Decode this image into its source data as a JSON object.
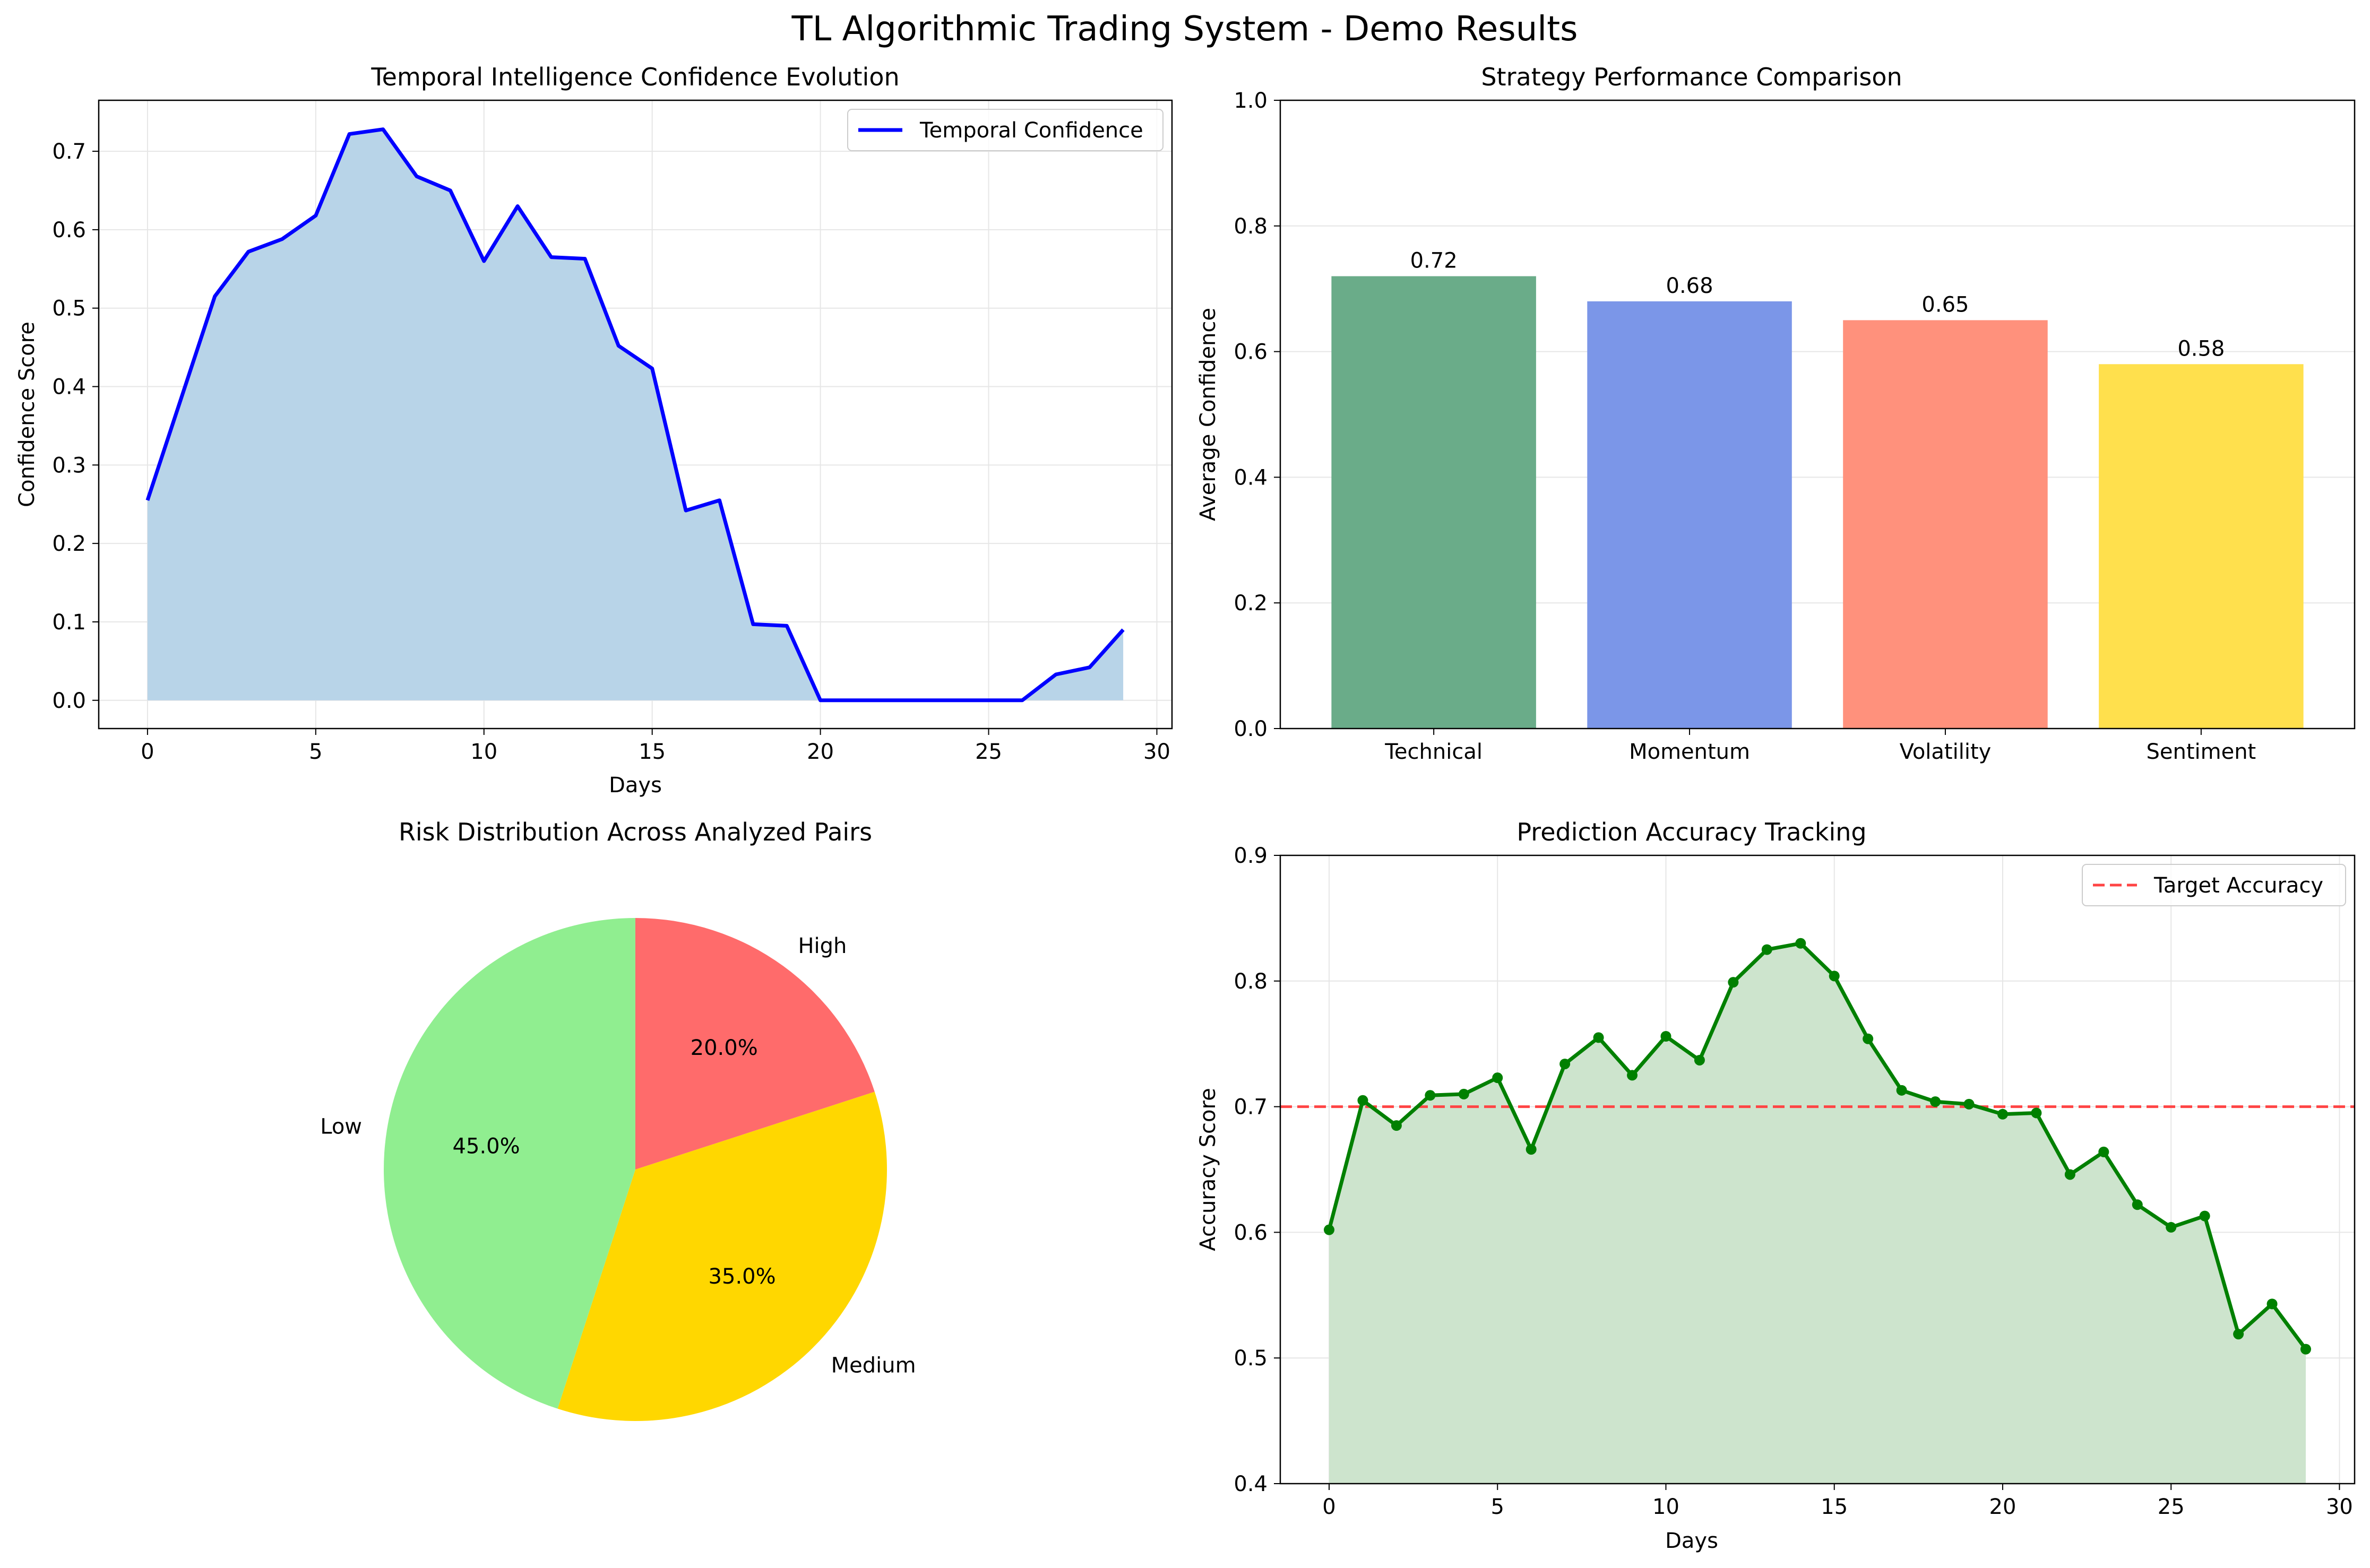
{
  "figure": {
    "title": "TL Algorithmic Trading System - Demo Results"
  },
  "chart_data": [
    {
      "type": "area",
      "title": "Temporal Intelligence Confidence Evolution",
      "xlabel": "Days",
      "ylabel": "Confidence Score",
      "xlim": [
        -1.45,
        30.45
      ],
      "ylim": [
        -0.036,
        0.765
      ],
      "xticks": [
        0,
        5,
        10,
        15,
        20,
        25,
        30
      ],
      "yticks": [
        0.0,
        0.1,
        0.2,
        0.3,
        0.4,
        0.5,
        0.6,
        0.7
      ],
      "grid": true,
      "legend": "top-right",
      "colors": {
        "line": "#0000ff",
        "fill": "#b8d4e8"
      },
      "x": [
        0,
        1,
        2,
        3,
        4,
        5,
        6,
        7,
        8,
        9,
        10,
        11,
        12,
        13,
        14,
        15,
        16,
        17,
        18,
        19,
        20,
        21,
        22,
        23,
        24,
        25,
        26,
        27,
        28,
        29
      ],
      "series": [
        {
          "name": "Temporal Confidence",
          "values": [
            0.255,
            0.385,
            0.515,
            0.572,
            0.588,
            0.618,
            0.722,
            0.728,
            0.668,
            0.65,
            0.56,
            0.63,
            0.565,
            0.563,
            0.452,
            0.423,
            0.242,
            0.255,
            0.097,
            0.095,
            0.0,
            0.0,
            0.0,
            0.0,
            0.0,
            0.0,
            0.0,
            0.033,
            0.042,
            0.09
          ]
        }
      ]
    },
    {
      "type": "bar",
      "title": "Strategy Performance Comparison",
      "xlabel": "",
      "ylabel": "Average Confidence",
      "ylim": [
        0,
        1.0
      ],
      "yticks": [
        0.0,
        0.2,
        0.4,
        0.6,
        0.8,
        1.0
      ],
      "grid": true,
      "categories": [
        "Technical",
        "Momentum",
        "Volatility",
        "Sentiment"
      ],
      "values": [
        0.72,
        0.68,
        0.65,
        0.58
      ],
      "labels": [
        "0.72",
        "0.68",
        "0.65",
        "0.58"
      ],
      "colors": [
        "#6aac89",
        "#7b96e8",
        "#ff917c",
        "#ffe04d"
      ]
    },
    {
      "type": "pie",
      "title": "Risk Distribution Across Analyzed Pairs",
      "categories": [
        "High",
        "Medium",
        "Low"
      ],
      "values": [
        20.0,
        35.0,
        45.0
      ],
      "labels": [
        "20.0%",
        "35.0%",
        "45.0%"
      ],
      "colors": [
        "#ff6b6b",
        "#ffd700",
        "#90ee90"
      ]
    },
    {
      "type": "line",
      "title": "Prediction Accuracy Tracking",
      "xlabel": "Days",
      "ylabel": "Accuracy Score",
      "xlim": [
        -1.45,
        30.45
      ],
      "ylim": [
        0.4,
        0.9
      ],
      "xticks": [
        0,
        5,
        10,
        15,
        20,
        25,
        30
      ],
      "yticks": [
        0.4,
        0.5,
        0.6,
        0.7,
        0.8,
        0.9
      ],
      "grid": true,
      "legend": "top-right",
      "colors": {
        "line": "#008000",
        "fill": "#cde4cd",
        "target": "#ff4444"
      },
      "target": {
        "name": "Target Accuracy",
        "value": 0.7
      },
      "x": [
        0,
        1,
        2,
        3,
        4,
        5,
        6,
        7,
        8,
        9,
        10,
        11,
        12,
        13,
        14,
        15,
        16,
        17,
        18,
        19,
        20,
        21,
        22,
        23,
        24,
        25,
        26,
        27,
        28,
        29
      ],
      "series": [
        {
          "name": "",
          "values": [
            0.602,
            0.705,
            0.685,
            0.709,
            0.71,
            0.723,
            0.666,
            0.734,
            0.755,
            0.725,
            0.756,
            0.737,
            0.799,
            0.825,
            0.83,
            0.804,
            0.754,
            0.713,
            0.704,
            0.702,
            0.694,
            0.695,
            0.646,
            0.664,
            0.622,
            0.604,
            0.613,
            0.519,
            0.543,
            0.507
          ]
        }
      ]
    }
  ]
}
